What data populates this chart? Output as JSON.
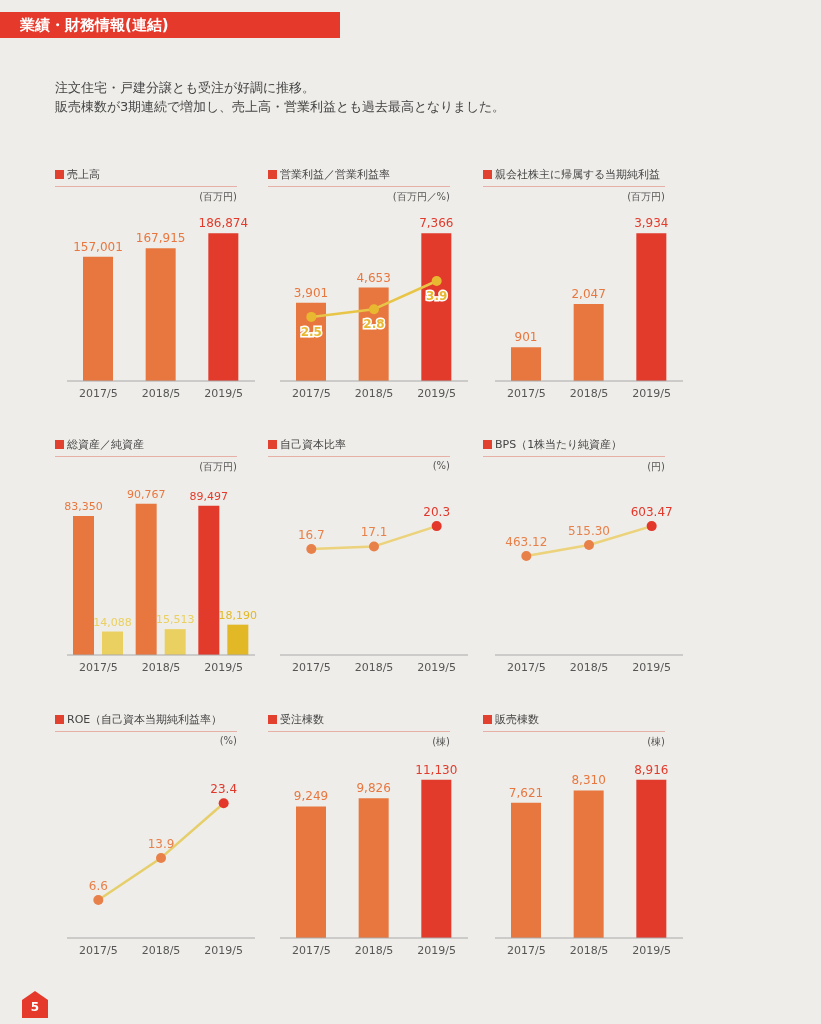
{
  "chart_data": [
    {
      "type": "other",
      "title": "業績・財務情報(連結)",
      "annotations": [
        "注文住宅・戸建分譲とも受注が好調に推移。",
        "販売棟数が3期連続で増加し、売上高・営業利益とも過去最高となりました。",
        "5"
      ]
    },
    {
      "type": "bar",
      "title": "売上高",
      "ylabel": "(百万円)",
      "categories": [
        "2017/5",
        "2018/5",
        "2019/5"
      ],
      "tick_labels": "x",
      "series": [
        {
          "colors": [
            "#e8773f",
            "#e8773f",
            "#e23a2b"
          ],
          "values": [
            157001,
            167915,
            186874
          ],
          "value_labels": [
            "157,001",
            "167,915",
            "186,874"
          ]
        }
      ]
    },
    {
      "type": "bar",
      "title": "営業利益／営業利益率",
      "ylabel": "(百万円／%)",
      "categories": [
        "2017/5",
        "2018/5",
        "2019/5"
      ],
      "tick_labels": "x",
      "marker": "circle",
      "series": [
        {
          "type": "bar",
          "colors": [
            "#e8773f",
            "#e8773f",
            "#e23a2b"
          ],
          "values": [
            3901,
            4653,
            7366
          ],
          "value_labels": [
            "3,901",
            "4,653",
            "7,366"
          ]
        },
        {
          "type": "line",
          "axis": "y2",
          "color": "#e8c547",
          "colors": [
            "#e8b830",
            "#e8b830",
            "#e8b830"
          ],
          "values": [
            2.5,
            2.8,
            3.9
          ],
          "value_labels": [
            "2.5",
            "2.8",
            "3.9"
          ]
        }
      ]
    },
    {
      "type": "bar",
      "title": "親会社株主に帰属する当期純利益",
      "ylabel": "(百万円)",
      "categories": [
        "2017/5",
        "2018/5",
        "2019/5"
      ],
      "tick_labels": "x",
      "series": [
        {
          "colors": [
            "#e8773f",
            "#e8773f",
            "#e23a2b"
          ],
          "values": [
            901,
            2047,
            3934
          ],
          "value_labels": [
            "901",
            "2,047",
            "3,934"
          ]
        }
      ]
    },
    {
      "type": "bar",
      "title": "総資産／純資産",
      "ylabel": "(百万円)",
      "categories": [
        "2017/5",
        "2018/5",
        "2019/5"
      ],
      "tick_labels": "x",
      "series": [
        {
          "colors": [
            "#e8773f",
            "#e8773f",
            "#e23a2b"
          ],
          "values": [
            83350,
            90767,
            89497
          ],
          "value_labels": [
            "83,350",
            "90,767",
            "89,497"
          ]
        },
        {
          "colors": [
            "#ead060",
            "#ead060",
            "#e2b826"
          ],
          "values": [
            14088,
            15513,
            18190
          ],
          "value_labels": [
            "14,088",
            "15,513",
            "18,190"
          ]
        }
      ]
    },
    {
      "type": "line",
      "title": "自己資本比率",
      "ylabel": "(%)",
      "categories": [
        "2017/5",
        "2018/5",
        "2019/5"
      ],
      "tick_labels": "x",
      "marker": "circle",
      "data_labels": true,
      "series": [
        {
          "color": "#ecd27a",
          "colors": [
            "#e8804a",
            "#e8804a",
            "#e2372a"
          ],
          "values": [
            16.7,
            17.1,
            20.3
          ]
        }
      ]
    },
    {
      "type": "line",
      "title": "BPS（1株当たり純資産）",
      "ylabel": "(円)",
      "categories": [
        "2017/5",
        "2018/5",
        "2019/5"
      ],
      "tick_labels": "x",
      "marker": "circle",
      "series": [
        {
          "color": "#ecd27a",
          "colors": [
            "#e8804a",
            "#e8804a",
            "#e2372a"
          ],
          "values": [
            463.12,
            515.3,
            603.47
          ],
          "value_labels": [
            "463.12",
            "515.30",
            "603.47"
          ]
        }
      ]
    },
    {
      "type": "line",
      "title": "ROE（自己資本当期純利益率）",
      "ylabel": "(%)",
      "categories": [
        "2017/5",
        "2018/5",
        "2019/5"
      ],
      "tick_labels": "x",
      "marker": "circle",
      "data_labels": true,
      "series": [
        {
          "color": "#e6cf6a",
          "colors": [
            "#e8804a",
            "#e8804a",
            "#e2372a"
          ],
          "values": [
            6.6,
            13.9,
            23.4
          ]
        }
      ]
    },
    {
      "type": "bar",
      "title": "受注棟数",
      "ylabel": "(棟)",
      "categories": [
        "2017/5",
        "2018/5",
        "2019/5"
      ],
      "tick_labels": "x",
      "series": [
        {
          "colors": [
            "#e8773f",
            "#e8773f",
            "#e23a2b"
          ],
          "values": [
            9249,
            9826,
            11130
          ],
          "value_labels": [
            "9,249",
            "9,826",
            "11,130"
          ]
        }
      ]
    },
    {
      "type": "bar",
      "title": "販売棟数",
      "ylabel": "(棟)",
      "categories": [
        "2017/5",
        "2018/5",
        "2019/5"
      ],
      "tick_labels": "x",
      "series": [
        {
          "colors": [
            "#e8773f",
            "#e8773f",
            "#e23a2b"
          ],
          "values": [
            7621,
            8310,
            8916
          ],
          "value_labels": [
            "7,621",
            "8,310",
            "8,916"
          ]
        }
      ]
    }
  ]
}
